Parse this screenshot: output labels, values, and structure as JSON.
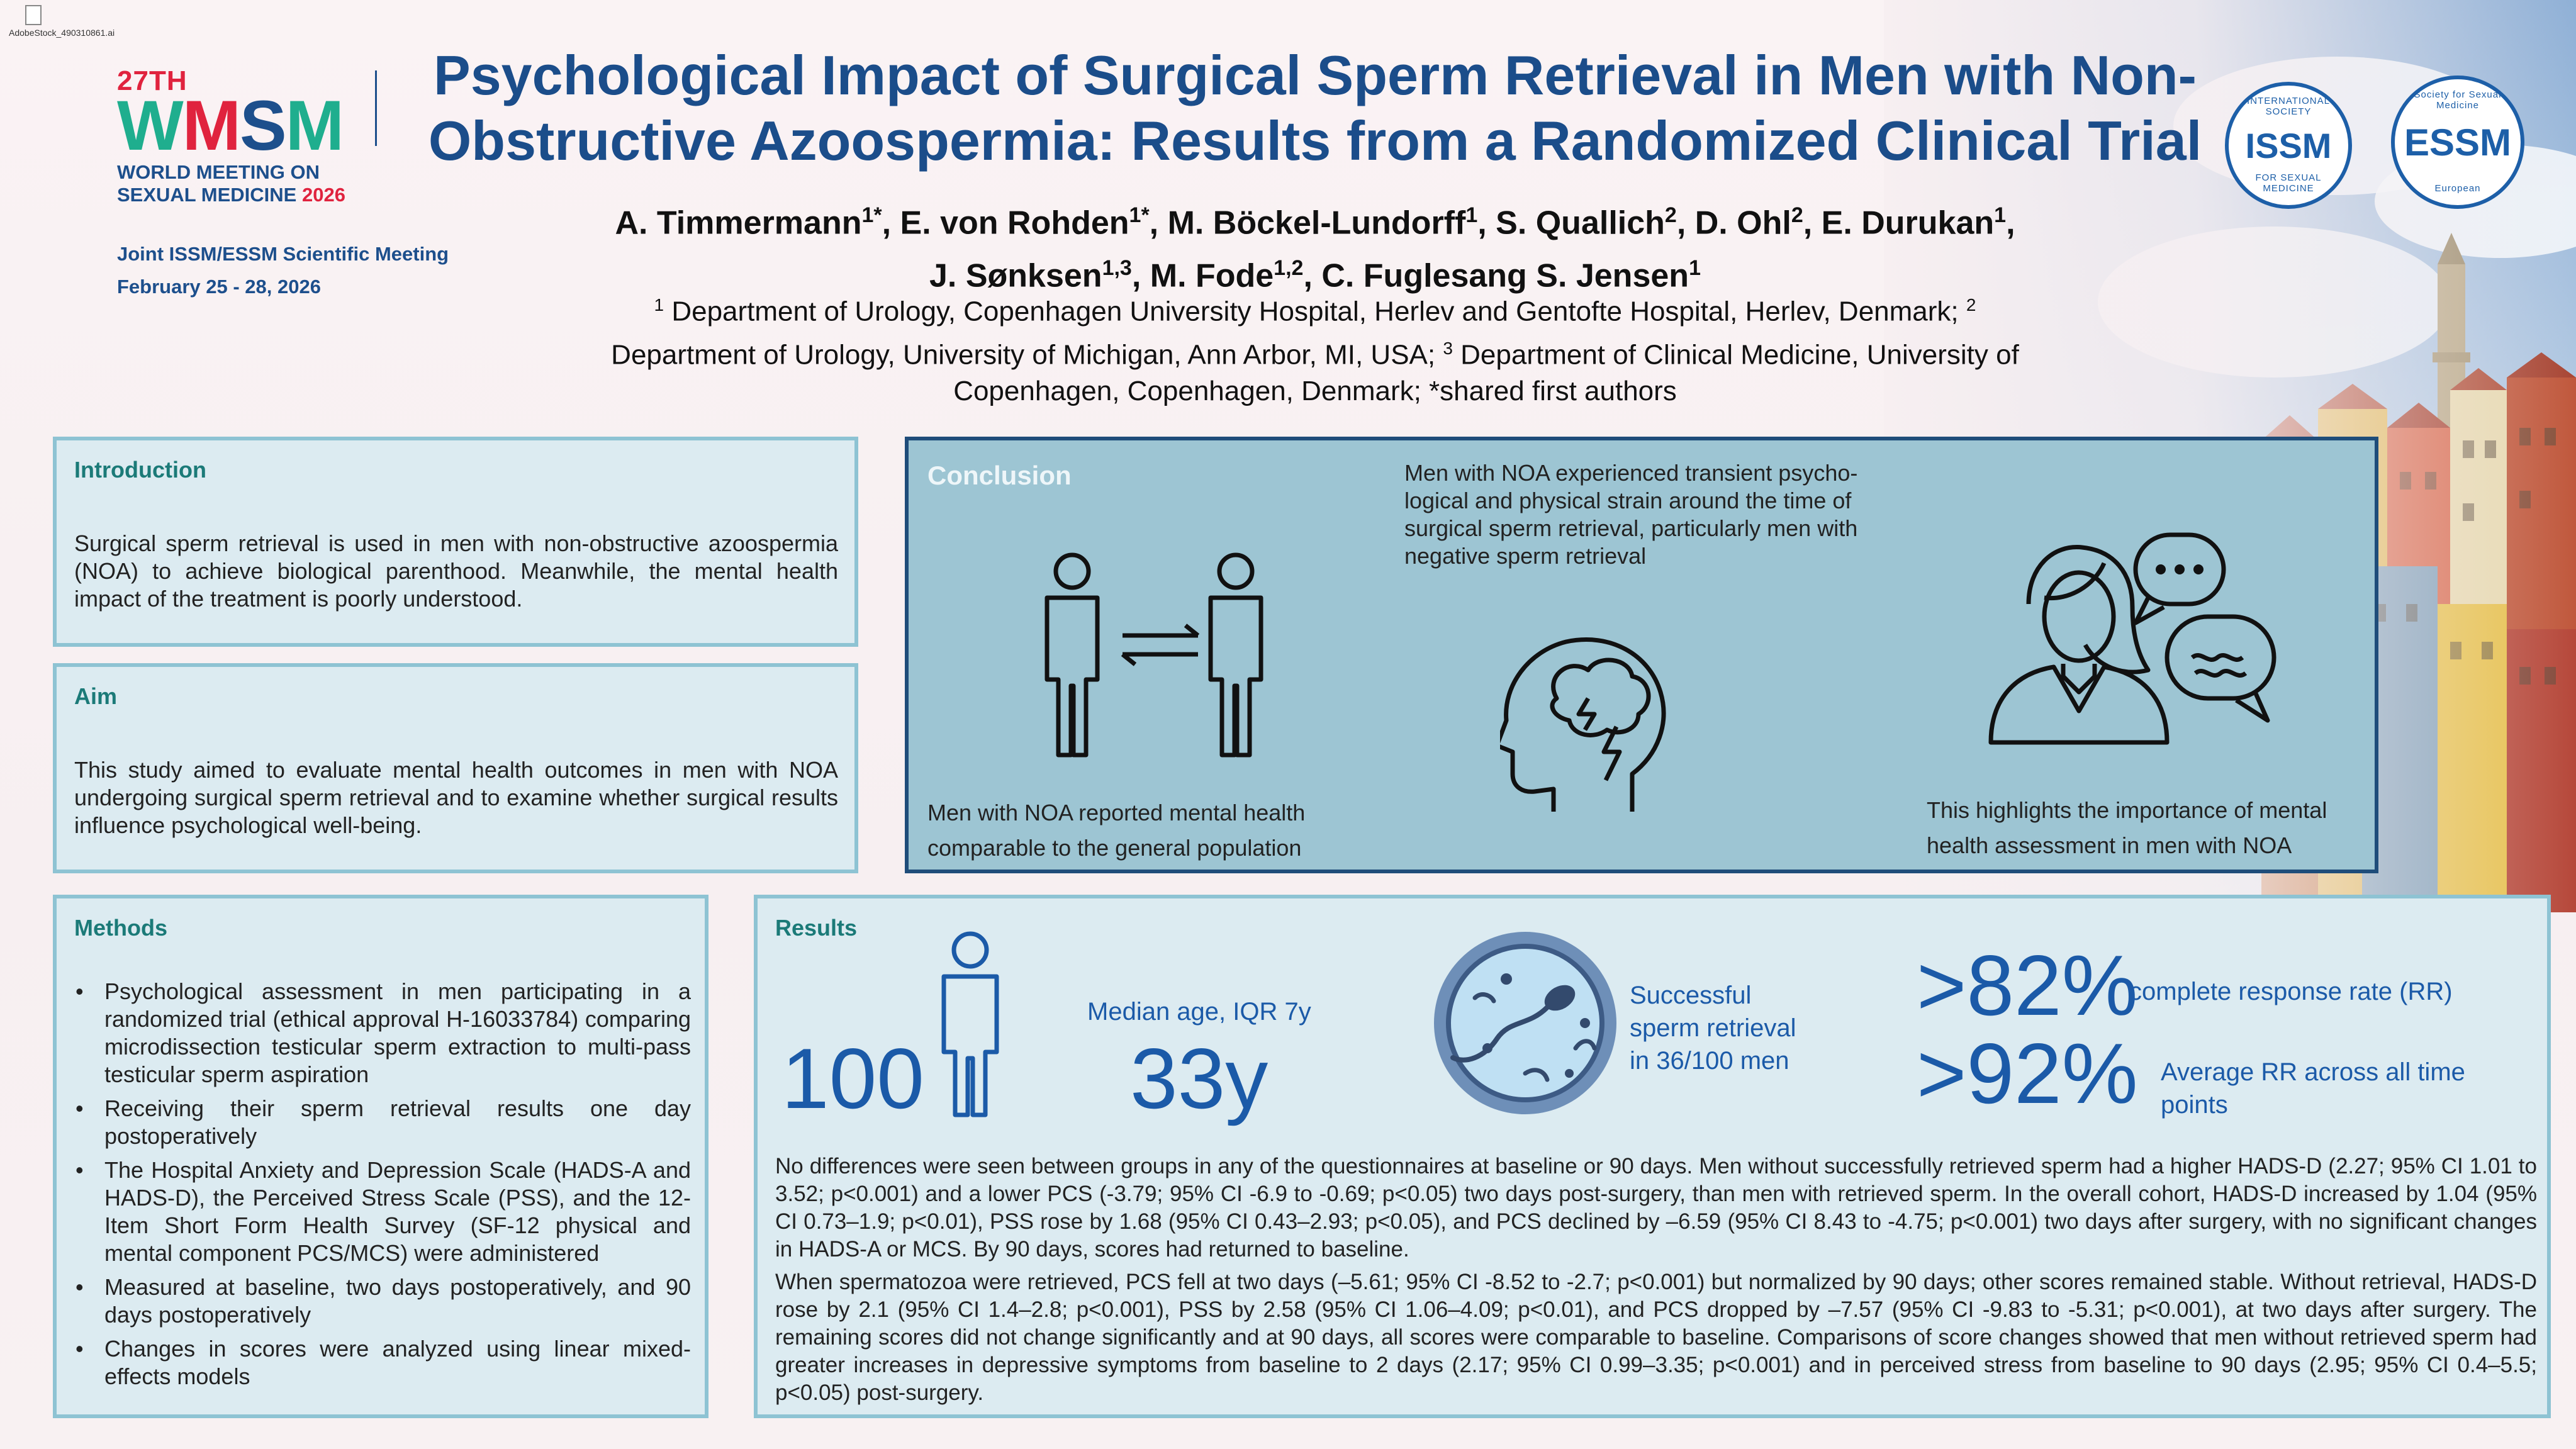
{
  "file_tag": "AdobeStock_490310861.ai",
  "conference": {
    "edition": "27TH",
    "brand": [
      "W",
      "M",
      "S",
      "M"
    ],
    "line1": "WORLD MEETING ON",
    "line2": "SEXUAL MEDICINE",
    "year": "2026",
    "joint": "Joint ISSM/ESSM Scientific Meeting",
    "dates": "February 25 - 28, 2026"
  },
  "title_line1": "Psychological Impact of Surgical Sperm Retrieval in Men with Non-",
  "title_line2": "Obstructive Azoospermia: Results from a Randomized Clinical Trial",
  "authors": [
    {
      "name": "A. Timmermann",
      "sup": "1*"
    },
    {
      "name": "E. von Rohden",
      "sup": "1*"
    },
    {
      "name": "M. Böckel-Lundorff",
      "sup": "1"
    },
    {
      "name": "S. Quallich",
      "sup": "2"
    },
    {
      "name": "D. Ohl",
      "sup": "2"
    },
    {
      "name": "E. Durukan",
      "sup": "1"
    },
    {
      "name": "J. Sønksen",
      "sup": "1,3"
    },
    {
      "name": "M. Fode",
      "sup": "1,2"
    },
    {
      "name": "C. Fuglesang S. Jensen",
      "sup": "1"
    }
  ],
  "affiliations": {
    "s1": "1",
    "a1": " Department of Urology, Copenhagen University Hospital, Herlev and Gentofte Hospital, Herlev, Denmark; ",
    "s2": "2",
    "a2": "Department of Urology, University of Michigan, Ann Arbor, MI, USA; ",
    "s3": "3",
    "a3": " Department of Clinical Medicine, University of Copenhagen, Copenhagen, Denmark; *shared first authors"
  },
  "societies": {
    "issm": {
      "abbr": "ISSM",
      "ring_top": "INTERNATIONAL SOCIETY",
      "ring_bottom": "FOR SEXUAL MEDICINE"
    },
    "essm": {
      "abbr": "ESSM",
      "ring_top": "Society for Sexual Medicine",
      "ring_bottom": "European"
    }
  },
  "introduction": {
    "heading": "Introduction",
    "text": "Surgical sperm retrieval is used in men with non-obstructive azoospermia (NOA) to achieve biological parenthood. Meanwhile, the mental health impact of the treatment is poorly understood."
  },
  "aim": {
    "heading": "Aim",
    "text": "This study aimed to evaluate mental health outcomes in men with NOA undergoing surgical sperm retrieval and to examine whether surgical results influence psychological well-being."
  },
  "methods": {
    "heading": "Methods",
    "items": [
      "Psychological assessment in men participating in a randomized trial (ethical approval H-16033784) comparing microdissection testicular sperm extraction to multi-pass testicular sperm aspiration",
      "Receiving their sperm retrieval results one day postoperatively",
      "The Hospital Anxiety and Depression Scale (HADS-A and HADS-D), the Perceived Stress Scale (PSS), and the 12-Item Short Form Health Survey (SF-12 physical and mental component PCS/MCS) were administered",
      "Measured at baseline, two days postoperatively, and 90 days postoperatively",
      "Changes in scores were analyzed using linear mixed-effects models"
    ]
  },
  "conclusion": {
    "heading": "Conclusion",
    "left": "Men with NOA reported mental health comparable to the general population",
    "middle": "Men with NOA experienced transient psycho-logical and physical strain around the time of surgical sperm retrieval, particularly men with negative sperm retrieval",
    "right": "This highlights the importance of mental health assessment in men with NOA"
  },
  "results": {
    "heading": "Results",
    "n": "100",
    "median_label": "Median age, IQR 7y",
    "median_age": "33y",
    "success": "Successful sperm retrieval in 36/100 men",
    "crr_value": ">82%",
    "crr_label": "complete response rate (RR)",
    "arr_value": ">92%",
    "arr_label": "Average RR across all time points",
    "p1": "No differences were seen between groups in any of the questionnaires at baseline or 90 days. Men without successfully retrieved sperm had a higher HADS-D (2.27; 95% CI 1.01 to 3.52; p<0.001) and a lower PCS (-3.79; 95% CI -6.9 to -0.69; p<0.05) two days post-surgery, than men with retrieved sperm. In the overall cohort, HADS-D increased by 1.04 (95% CI 0.73–1.9; p<0.01), PSS rose by 1.68 (95% CI 0.43–2.93; p<0.05), and PCS declined by –6.59 (95% CI 8.43 to -4.75; p<0.001) two days after surgery, with no significant changes in HADS-A or MCS. By 90 days, scores had returned to baseline.",
    "p2": "When spermatozoa were retrieved, PCS fell at two days (–5.61; 95% CI -8.52 to -2.7; p<0.001) but normalized by 90 days; other scores remained stable. Without retrieval, HADS-D rose by 2.1 (95% CI 1.4–2.8; p<0.001), PSS by 2.58 (95% CI 1.06–4.09; p<0.01), and PCS dropped by –7.57 (95% CI -9.83 to -5.31; p<0.001), at two days after surgery. The remaining scores did not change significantly and at 90 days, all scores were comparable to baseline. Comparisons of score changes showed that men without retrieved sperm had greater increases in depressive symptoms from baseline to 2 days (2.17; 95% CI 0.99–3.35; p<0.001) and in perceived stress from baseline to 90 days (2.95; 95% CI 0.4–5.5; p<0.05) post-surgery."
  },
  "colors": {
    "title": "#1b4d8a",
    "accent": "#1b7a78",
    "panel": "#dcebf1",
    "panel_border": "#8ec3d3",
    "conclusion_bg": "#9dc5d3",
    "conclusion_border": "#1f4d7a",
    "results_blue": "#1b5aa8"
  }
}
